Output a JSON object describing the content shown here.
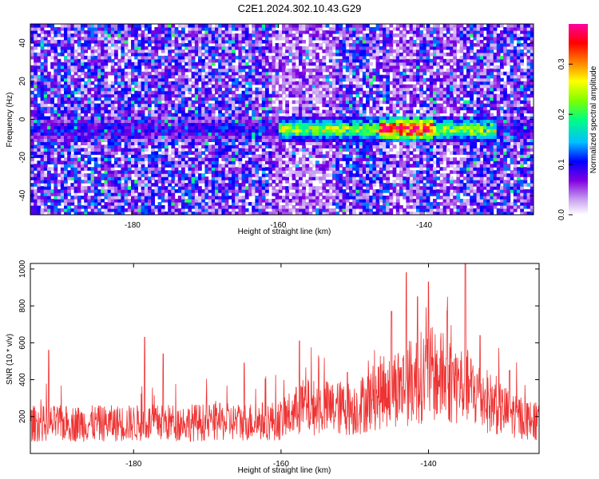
{
  "title": "C2E1.2024.302.10.43.G29",
  "chart_data": [
    {
      "type": "heatmap",
      "xlabel": "Height of straight line (km)",
      "ylabel": "Frequency (Hz)",
      "xlim": [
        -194,
        -125
      ],
      "ylim": [
        -50,
        50
      ],
      "xticks": [
        -180,
        -160,
        -140
      ],
      "yticks": [
        -40,
        -20,
        0,
        20,
        40
      ],
      "colorbar": {
        "label": "Normalized spectral amplitude",
        "range": [
          0,
          0.38
        ],
        "ticks": [
          0.0,
          0.1,
          0.2,
          0.3
        ],
        "colors": [
          "#ffffff",
          "#c8a0f0",
          "#8000e0",
          "#0000ff",
          "#00c0ff",
          "#00ff80",
          "#80ff00",
          "#ffff00",
          "#ff8000",
          "#ff0000",
          "#ff00a0"
        ]
      },
      "band": {
        "center_hz": -5,
        "width_hz": 6,
        "strong_region_km": [
          -160,
          -130
        ],
        "peak_km": [
          -146,
          -139
        ],
        "peak_amplitude": 0.37
      }
    },
    {
      "type": "line",
      "xlabel": "Height of straight line (km)",
      "ylabel": "SNR (10 * v/v)",
      "xlim": [
        -194,
        -125
      ],
      "ylim": [
        0,
        1030
      ],
      "xticks": [
        -180,
        -160,
        -140
      ],
      "yticks": [
        200,
        400,
        600,
        800,
        1000
      ],
      "series_color": "#ee3333",
      "envelope": {
        "x": [
          -194,
          -185,
          -175,
          -165,
          -160,
          -157,
          -150,
          -146,
          -143,
          -140,
          -137,
          -135,
          -130,
          -125
        ],
        "y": [
          180,
          180,
          185,
          190,
          200,
          280,
          270,
          380,
          420,
          480,
          440,
          400,
          260,
          180
        ]
      },
      "peaks": [
        {
          "x": -191.5,
          "y": 560
        },
        {
          "x": -178.5,
          "y": 630
        },
        {
          "x": -176,
          "y": 540
        },
        {
          "x": -165,
          "y": 490
        },
        {
          "x": -157.5,
          "y": 610
        },
        {
          "x": -151,
          "y": 440
        },
        {
          "x": -145,
          "y": 770
        },
        {
          "x": -143,
          "y": 980
        },
        {
          "x": -141.5,
          "y": 850
        },
        {
          "x": -140,
          "y": 930
        },
        {
          "x": -137.5,
          "y": 770
        },
        {
          "x": -135,
          "y": 1030
        },
        {
          "x": -133,
          "y": 640
        },
        {
          "x": -129,
          "y": 450
        }
      ]
    }
  ]
}
